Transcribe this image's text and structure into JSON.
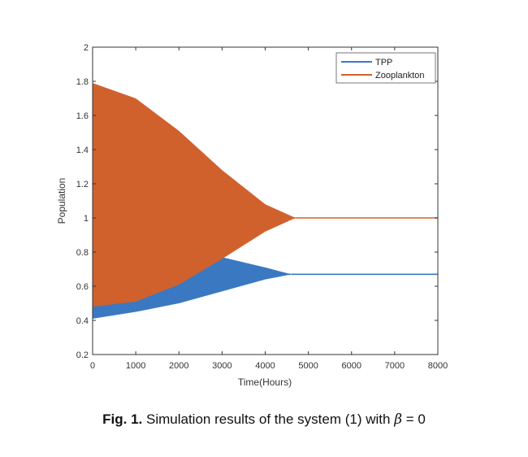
{
  "chart_data": {
    "type": "line",
    "title": "",
    "xlabel": "Time(Hours)",
    "ylabel": "Population",
    "xlim": [
      0,
      8000
    ],
    "ylim": [
      0.2,
      2
    ],
    "xticks": [
      0,
      1000,
      2000,
      3000,
      4000,
      5000,
      6000,
      7000,
      8000
    ],
    "yticks": [
      0.2,
      0.4,
      0.6,
      0.8,
      1,
      1.2,
      1.4,
      1.6,
      1.8,
      2
    ],
    "grid": false,
    "legend": "top-right",
    "series": [
      {
        "name": "TPP",
        "color": "#3a78c2",
        "style": "damped oscillation",
        "envelope_x": [
          0,
          1000,
          2000,
          3000,
          4000,
          4600,
          8000
        ],
        "envelope_upper": [
          0.5,
          0.6,
          0.72,
          0.77,
          0.71,
          0.67,
          0.67
        ],
        "envelope_lower": [
          0.41,
          0.45,
          0.5,
          0.57,
          0.64,
          0.67,
          0.67
        ],
        "final_value": 0.67
      },
      {
        "name": "Zooplankton",
        "color": "#d0612d",
        "style": "damped oscillation",
        "envelope_x": [
          0,
          1000,
          2000,
          3000,
          4000,
          4700,
          8000
        ],
        "envelope_upper": [
          1.79,
          1.7,
          1.51,
          1.28,
          1.08,
          1.0,
          1.0
        ],
        "envelope_lower": [
          0.48,
          0.51,
          0.61,
          0.76,
          0.92,
          1.0,
          1.0
        ],
        "final_value": 1.0
      }
    ]
  },
  "caption": {
    "label": "Fig. 1.",
    "text": "Simulation results of the system (1) with",
    "symbol": "β",
    "condition": "= 0"
  }
}
